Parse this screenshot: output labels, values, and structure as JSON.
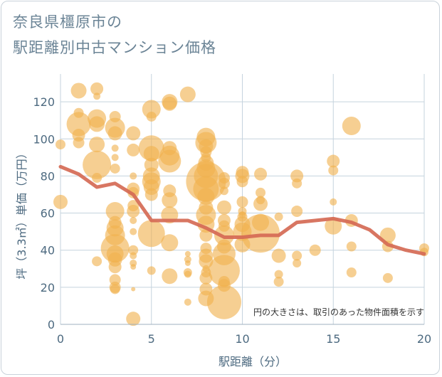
{
  "title": {
    "line1": "奈良県橿原市の",
    "line2": "駅距離別中古マンション価格"
  },
  "chart_data": {
    "type": "scatter",
    "xlabel": "駅距離（分）",
    "ylabel": "坪（3.3㎡）単価（万円）",
    "xlim": [
      0,
      20
    ],
    "ylim": [
      0,
      135
    ],
    "xticks": [
      0,
      5,
      10,
      15,
      20
    ],
    "yticks": [
      0,
      20,
      40,
      60,
      80,
      100,
      120
    ],
    "grid": true,
    "note": "円の大きさは、取引のあった物件面積を示す",
    "colors": {
      "bubble": "#f0b24f",
      "line": "#d56a55",
      "grid": "#c5d3de"
    },
    "bubbles": [
      [
        0,
        97,
        7
      ],
      [
        0,
        66,
        10
      ],
      [
        1,
        126,
        11
      ],
      [
        1,
        108,
        17
      ],
      [
        1,
        102,
        9
      ],
      [
        1,
        98,
        8
      ],
      [
        1,
        114,
        7
      ],
      [
        2,
        127,
        9
      ],
      [
        2,
        123,
        5
      ],
      [
        2,
        111,
        13
      ],
      [
        2,
        108,
        11
      ],
      [
        2,
        97,
        11
      ],
      [
        2,
        86,
        20
      ],
      [
        2,
        79,
        7
      ],
      [
        2,
        34,
        7
      ],
      [
        3,
        112,
        8
      ],
      [
        3,
        106,
        14
      ],
      [
        3,
        103,
        10
      ],
      [
        3,
        95,
        5
      ],
      [
        3,
        90,
        5
      ],
      [
        3,
        84,
        7
      ],
      [
        3,
        61,
        13
      ],
      [
        3,
        55,
        9
      ],
      [
        3,
        52,
        12
      ],
      [
        3,
        48,
        14
      ],
      [
        3,
        41,
        20
      ],
      [
        3,
        38,
        12
      ],
      [
        3,
        35,
        10
      ],
      [
        3,
        31,
        9
      ],
      [
        3,
        24,
        8
      ],
      [
        3,
        20,
        8
      ],
      [
        3,
        19,
        7
      ],
      [
        4,
        103,
        10
      ],
      [
        4,
        94,
        9
      ],
      [
        4,
        80,
        5
      ],
      [
        4,
        73,
        9
      ],
      [
        4,
        71,
        8
      ],
      [
        4,
        64,
        8
      ],
      [
        4,
        61,
        9
      ],
      [
        4,
        56,
        5
      ],
      [
        4,
        50,
        5
      ],
      [
        4,
        40,
        7
      ],
      [
        4,
        37,
        5
      ],
      [
        4,
        33,
        5
      ],
      [
        4,
        31,
        4
      ],
      [
        4,
        19,
        3
      ],
      [
        4,
        3,
        10
      ],
      [
        5,
        116,
        13
      ],
      [
        5,
        112,
        7
      ],
      [
        5,
        95,
        18
      ],
      [
        5,
        92,
        11
      ],
      [
        5,
        86,
        10
      ],
      [
        5,
        80,
        12
      ],
      [
        5,
        77,
        13
      ],
      [
        5,
        74,
        11
      ],
      [
        5,
        70,
        9
      ],
      [
        5,
        49,
        19
      ],
      [
        5,
        29,
        6
      ],
      [
        6,
        120,
        11
      ],
      [
        6,
        119,
        10
      ],
      [
        6,
        95,
        10
      ],
      [
        6,
        91,
        14
      ],
      [
        6,
        88,
        16
      ],
      [
        6,
        72,
        9
      ],
      [
        6,
        67,
        11
      ],
      [
        6,
        59,
        12
      ],
      [
        6,
        44,
        12
      ],
      [
        6,
        26,
        11
      ],
      [
        7,
        124,
        11
      ],
      [
        7,
        38,
        4
      ],
      [
        7,
        35,
        5
      ],
      [
        7,
        33,
        4
      ],
      [
        7,
        28,
        6
      ],
      [
        7,
        27,
        5
      ],
      [
        7,
        12,
        5
      ],
      [
        8,
        101,
        13
      ],
      [
        8,
        98,
        15
      ],
      [
        8,
        96,
        10
      ],
      [
        8,
        93,
        8
      ],
      [
        8,
        90,
        7
      ],
      [
        8,
        87,
        11
      ],
      [
        8,
        84,
        13
      ],
      [
        8,
        80,
        17
      ],
      [
        8,
        77,
        28
      ],
      [
        8,
        73,
        18
      ],
      [
        8,
        69,
        12
      ],
      [
        8,
        63,
        10
      ],
      [
        8,
        59,
        14
      ],
      [
        8,
        54,
        12
      ],
      [
        8,
        48,
        9
      ],
      [
        8,
        41,
        8
      ],
      [
        8,
        37,
        10
      ],
      [
        8,
        34,
        10
      ],
      [
        8,
        30,
        5
      ],
      [
        8,
        28,
        7
      ],
      [
        8,
        25,
        9
      ],
      [
        8,
        19,
        9
      ],
      [
        8,
        14,
        11
      ],
      [
        9,
        79,
        8
      ],
      [
        9,
        76,
        8
      ],
      [
        9,
        72,
        6
      ],
      [
        9,
        63,
        10
      ],
      [
        9,
        56,
        9
      ],
      [
        9,
        53,
        8
      ],
      [
        9,
        48,
        14
      ],
      [
        9,
        42,
        10
      ],
      [
        9,
        38,
        16
      ],
      [
        9,
        29,
        22
      ],
      [
        9,
        23,
        8
      ],
      [
        9,
        21,
        9
      ],
      [
        9,
        12,
        24
      ],
      [
        10,
        82,
        9
      ],
      [
        10,
        80,
        10
      ],
      [
        10,
        77,
        8
      ],
      [
        10,
        66,
        8
      ],
      [
        10,
        61,
        6
      ],
      [
        10,
        59,
        5
      ],
      [
        10,
        58,
        7
      ],
      [
        10,
        54,
        11
      ],
      [
        10,
        50,
        13
      ],
      [
        10,
        43,
        11
      ],
      [
        11,
        81,
        9
      ],
      [
        11,
        71,
        7
      ],
      [
        11,
        67,
        6
      ],
      [
        11,
        65,
        10
      ],
      [
        11,
        55,
        12
      ],
      [
        11,
        49,
        27
      ],
      [
        12,
        58,
        6
      ],
      [
        12,
        37,
        10
      ],
      [
        12,
        27,
        6
      ],
      [
        12,
        23,
        7
      ],
      [
        13,
        80,
        9
      ],
      [
        13,
        76,
        7
      ],
      [
        13,
        61,
        8
      ],
      [
        13,
        37,
        7
      ],
      [
        13,
        33,
        6
      ],
      [
        14,
        40,
        8
      ],
      [
        15,
        88,
        9
      ],
      [
        15,
        83,
        7
      ],
      [
        15,
        66,
        5
      ],
      [
        15,
        53,
        12
      ],
      [
        16,
        107,
        13
      ],
      [
        16,
        56,
        9
      ],
      [
        16,
        42,
        7
      ],
      [
        16,
        28,
        7
      ],
      [
        18,
        48,
        11
      ],
      [
        18,
        42,
        8
      ],
      [
        18,
        25,
        7
      ],
      [
        20,
        41,
        7
      ],
      [
        20,
        39,
        6
      ]
    ],
    "line": {
      "x": [
        0,
        1,
        2,
        3,
        4,
        5,
        6,
        7,
        8,
        9,
        10,
        11,
        12,
        13,
        14,
        15,
        16,
        17,
        18,
        19,
        20
      ],
      "y": [
        85,
        81,
        74,
        76,
        70,
        56,
        56,
        56,
        52,
        47,
        47,
        48,
        48,
        55,
        56,
        57,
        55,
        51,
        43,
        40,
        38
      ]
    }
  }
}
